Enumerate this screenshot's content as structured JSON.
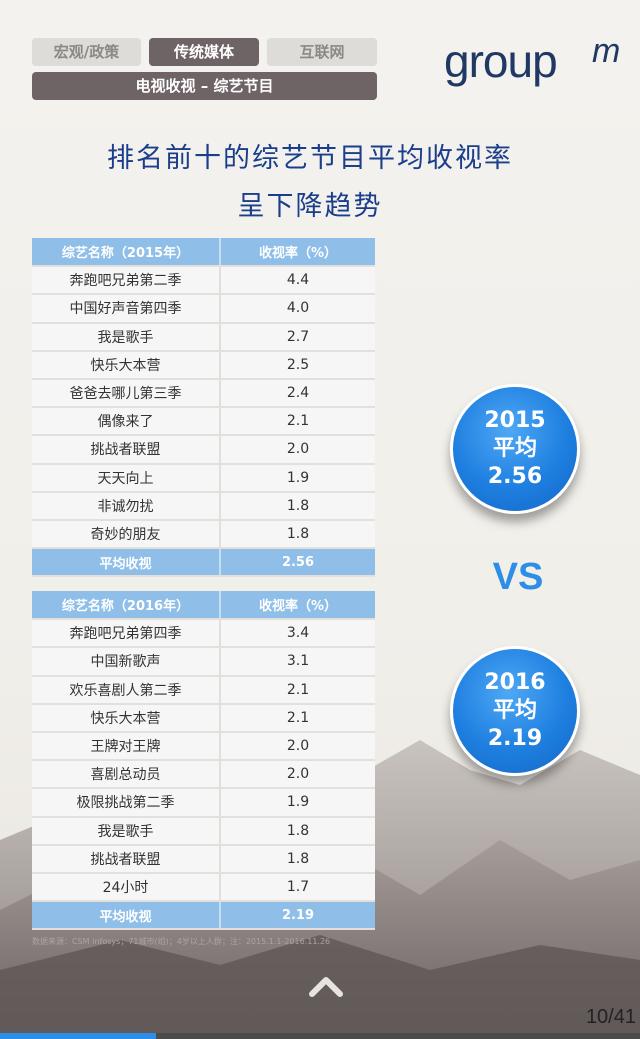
{
  "tabs": [
    {
      "label": "宏观/政策",
      "active": false
    },
    {
      "label": "传统媒体",
      "active": true
    },
    {
      "label": "互联网",
      "active": false
    }
  ],
  "subtab": "电视收视 – 综艺节目",
  "logo": {
    "text": "group",
    "suffix": "m"
  },
  "title": {
    "line1": "排名前十的综艺节目平均收视率",
    "line2": "呈下降趋势"
  },
  "table2015": {
    "headers": [
      "综艺名称（2015年）",
      "收视率（%）"
    ],
    "rows": [
      [
        "奔跑吧兄弟第二季",
        "4.4"
      ],
      [
        "中国好声音第四季",
        "4.0"
      ],
      [
        "我是歌手",
        "2.7"
      ],
      [
        "快乐大本营",
        "2.5"
      ],
      [
        "爸爸去哪儿第三季",
        "2.4"
      ],
      [
        "偶像来了",
        "2.1"
      ],
      [
        "挑战者联盟",
        "2.0"
      ],
      [
        "天天向上",
        "1.9"
      ],
      [
        "非诚勿扰",
        "1.8"
      ],
      [
        "奇妙的朋友",
        "1.8"
      ]
    ],
    "average": [
      "平均收视",
      "2.56"
    ]
  },
  "table2016": {
    "headers": [
      "综艺名称（2016年）",
      "收视率（%）"
    ],
    "rows": [
      [
        "奔跑吧兄弟第四季",
        "3.4"
      ],
      [
        "中国新歌声",
        "3.1"
      ],
      [
        "欢乐喜剧人第二季",
        "2.1"
      ],
      [
        "快乐大本营",
        "2.1"
      ],
      [
        "王牌对王牌",
        "2.0"
      ],
      [
        "喜剧总动员",
        "2.0"
      ],
      [
        "极限挑战第二季",
        "1.9"
      ],
      [
        "我是歌手",
        "1.8"
      ],
      [
        "挑战者联盟",
        "1.8"
      ],
      [
        "24小时",
        "1.7"
      ]
    ],
    "average": [
      "平均收视",
      "2.19"
    ]
  },
  "circle2015": {
    "year": "2015",
    "label": "平均",
    "value": "2.56"
  },
  "circle2016": {
    "year": "2016",
    "label": "平均",
    "value": "2.19"
  },
  "vs": "VS",
  "source": "数据来源：CSM Infosys；71城市(组)；4岁以上人群；注：2015.1.1-2016.11.26",
  "page": {
    "indicator": "10/41",
    "current": 10,
    "total": 41
  },
  "colors": {
    "title": "#1a3e8c",
    "header_blue": "#8fbfe8",
    "circle_blue": "#1e7fe0",
    "tab_dark": "#6e6365",
    "logo": "#1f3864"
  },
  "icons": {
    "scroll_up": "chevron-up-icon"
  }
}
